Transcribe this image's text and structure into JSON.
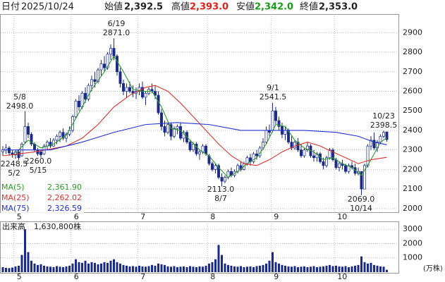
{
  "header": {
    "date_label": "日付",
    "date": "2025/10/24",
    "items": [
      {
        "label": "始値",
        "value": "2,392.5",
        "color": "#222222"
      },
      {
        "label": "高値",
        "value": "2,393.0",
        "color": "#e0201a"
      },
      {
        "label": "安値",
        "value": "2,342.0",
        "color": "#1a9a1a"
      },
      {
        "label": "終値",
        "value": "2,353.0",
        "color": "#222222"
      }
    ]
  },
  "chart_data": {
    "type": "candlestick",
    "up_color": "#ffffff",
    "down_color": "#1a2a8a",
    "wick_color": "#1a2a8a",
    "categories": [
      null,
      null,
      null,
      null,
      "5",
      null,
      null,
      null,
      null,
      null,
      null,
      null,
      null,
      null,
      null,
      null,
      null,
      null,
      null,
      null,
      null,
      null,
      "6",
      null,
      null,
      null,
      null,
      null,
      null,
      null,
      null,
      null,
      null,
      null,
      null,
      null,
      null,
      null,
      null,
      null,
      null,
      null,
      null,
      "7",
      null,
      null,
      null,
      null,
      null,
      null,
      null,
      null,
      null,
      null,
      null,
      null,
      null,
      null,
      null,
      null,
      null,
      null,
      null,
      null,
      null,
      "8",
      null,
      null,
      null,
      null,
      null,
      null,
      null,
      null,
      null,
      null,
      null,
      null,
      null,
      null,
      null,
      null,
      null,
      null,
      null,
      "9",
      null,
      null,
      null,
      null,
      null,
      null,
      null,
      null,
      null,
      null,
      null,
      null,
      null,
      null,
      null,
      null,
      null,
      null,
      null,
      "10",
      null,
      null,
      null,
      null,
      null,
      null,
      null,
      null,
      null,
      null,
      null,
      null,
      null,
      null,
      null,
      null
    ],
    "ohlc": [
      [
        2290,
        2320,
        2270,
        2300
      ],
      [
        2300,
        2330,
        2280,
        2310
      ],
      [
        2310,
        2320,
        2270,
        2285
      ],
      [
        2285,
        2300,
        2260,
        2275
      ],
      [
        2275,
        2300,
        2255,
        2290
      ],
      [
        2290,
        2300,
        2248.5,
        2260
      ],
      [
        2270,
        2340,
        2265,
        2330
      ],
      [
        2340,
        2498,
        2330,
        2420
      ],
      [
        2420,
        2440,
        2360,
        2380
      ],
      [
        2380,
        2390,
        2320,
        2330
      ],
      [
        2330,
        2340,
        2290,
        2300
      ],
      [
        2300,
        2310,
        2270,
        2280
      ],
      [
        2290,
        2300,
        2260,
        2275
      ],
      [
        2280,
        2330,
        2275,
        2320
      ],
      [
        2320,
        2350,
        2300,
        2340
      ],
      [
        2340,
        2360,
        2310,
        2320
      ],
      [
        2320,
        2360,
        2315,
        2350
      ],
      [
        2350,
        2380,
        2330,
        2370
      ],
      [
        2370,
        2400,
        2340,
        2390
      ],
      [
        2390,
        2410,
        2350,
        2360
      ],
      [
        2360,
        2390,
        2340,
        2380
      ],
      [
        2380,
        2420,
        2370,
        2400
      ],
      [
        2400,
        2480,
        2390,
        2470
      ],
      [
        2470,
        2560,
        2460,
        2550
      ],
      [
        2550,
        2580,
        2500,
        2520
      ],
      [
        2520,
        2600,
        2510,
        2590
      ],
      [
        2590,
        2620,
        2540,
        2560
      ],
      [
        2560,
        2640,
        2550,
        2630
      ],
      [
        2630,
        2680,
        2600,
        2660
      ],
      [
        2660,
        2700,
        2620,
        2650
      ],
      [
        2650,
        2720,
        2640,
        2710
      ],
      [
        2710,
        2760,
        2680,
        2740
      ],
      [
        2740,
        2780,
        2700,
        2720
      ],
      [
        2720,
        2800,
        2710,
        2790
      ],
      [
        2790,
        2840,
        2760,
        2820
      ],
      [
        2820,
        2871,
        2760,
        2780
      ],
      [
        2780,
        2790,
        2680,
        2700
      ],
      [
        2700,
        2720,
        2620,
        2640
      ],
      [
        2640,
        2660,
        2580,
        2600
      ],
      [
        2600,
        2640,
        2570,
        2620
      ],
      [
        2620,
        2650,
        2590,
        2600
      ],
      [
        2600,
        2630,
        2570,
        2590
      ],
      [
        2590,
        2620,
        2560,
        2600
      ],
      [
        2600,
        2640,
        2580,
        2620
      ],
      [
        2620,
        2650,
        2560,
        2570
      ],
      [
        2570,
        2600,
        2530,
        2590
      ],
      [
        2590,
        2620,
        2580,
        2610
      ],
      [
        2610,
        2640,
        2590,
        2600
      ],
      [
        2600,
        2630,
        2560,
        2580
      ],
      [
        2580,
        2600,
        2480,
        2490
      ],
      [
        2490,
        2510,
        2400,
        2420
      ],
      [
        2420,
        2450,
        2370,
        2390
      ],
      [
        2390,
        2440,
        2380,
        2430
      ],
      [
        2430,
        2440,
        2350,
        2370
      ],
      [
        2370,
        2420,
        2360,
        2410
      ],
      [
        2410,
        2430,
        2380,
        2420
      ],
      [
        2420,
        2440,
        2350,
        2360
      ],
      [
        2360,
        2400,
        2340,
        2390
      ],
      [
        2390,
        2400,
        2330,
        2340
      ],
      [
        2340,
        2350,
        2290,
        2300
      ],
      [
        2300,
        2340,
        2290,
        2330
      ],
      [
        2330,
        2340,
        2270,
        2280
      ],
      [
        2280,
        2300,
        2250,
        2290
      ],
      [
        2290,
        2330,
        2280,
        2320
      ],
      [
        2320,
        2330,
        2270,
        2280
      ],
      [
        2270,
        2280,
        2220,
        2230
      ],
      [
        2230,
        2240,
        2190,
        2200
      ],
      [
        2200,
        2230,
        2180,
        2220
      ],
      [
        2220,
        2230,
        2150,
        2160
      ],
      [
        2160,
        2180,
        2113,
        2140
      ],
      [
        2140,
        2170,
        2130,
        2160
      ],
      [
        2160,
        2200,
        2150,
        2190
      ],
      [
        2190,
        2210,
        2160,
        2170
      ],
      [
        2170,
        2200,
        2160,
        2190
      ],
      [
        2190,
        2230,
        2180,
        2220
      ],
      [
        2220,
        2240,
        2190,
        2200
      ],
      [
        2200,
        2240,
        2195,
        2230
      ],
      [
        2230,
        2270,
        2220,
        2260
      ],
      [
        2260,
        2280,
        2220,
        2240
      ],
      [
        2240,
        2290,
        2230,
        2280
      ],
      [
        2280,
        2300,
        2250,
        2270
      ],
      [
        2270,
        2320,
        2260,
        2310
      ],
      [
        2310,
        2360,
        2300,
        2340
      ],
      [
        2340,
        2420,
        2330,
        2400
      ],
      [
        2400,
        2430,
        2370,
        2390
      ],
      [
        2400,
        2541.5,
        2390,
        2500
      ],
      [
        2500,
        2520,
        2430,
        2450
      ],
      [
        2450,
        2470,
        2400,
        2420
      ],
      [
        2420,
        2440,
        2360,
        2380
      ],
      [
        2380,
        2420,
        2350,
        2400
      ],
      [
        2400,
        2410,
        2330,
        2340
      ],
      [
        2340,
        2370,
        2300,
        2310
      ],
      [
        2310,
        2350,
        2300,
        2340
      ],
      [
        2340,
        2360,
        2290,
        2300
      ],
      [
        2300,
        2330,
        2260,
        2270
      ],
      [
        2270,
        2310,
        2260,
        2300
      ],
      [
        2300,
        2340,
        2290,
        2320
      ],
      [
        2320,
        2330,
        2260,
        2270
      ],
      [
        2270,
        2300,
        2240,
        2260
      ],
      [
        2260,
        2290,
        2240,
        2280
      ],
      [
        2280,
        2290,
        2230,
        2240
      ],
      [
        2240,
        2260,
        2200,
        2220
      ],
      [
        2220,
        2270,
        2210,
        2260
      ],
      [
        2260,
        2310,
        2250,
        2300
      ],
      [
        2300,
        2310,
        2240,
        2250
      ],
      [
        2250,
        2260,
        2200,
        2210
      ],
      [
        2210,
        2240,
        2190,
        2230
      ],
      [
        2230,
        2250,
        2200,
        2220
      ],
      [
        2220,
        2230,
        2180,
        2190
      ],
      [
        2190,
        2230,
        2180,
        2220
      ],
      [
        2220,
        2240,
        2200,
        2210
      ],
      [
        2210,
        2230,
        2170,
        2180
      ],
      [
        2180,
        2210,
        2170,
        2190
      ],
      [
        2190,
        2190,
        2069,
        2100
      ],
      [
        2100,
        2230,
        2100,
        2220
      ],
      [
        2220,
        2330,
        2210,
        2320
      ],
      [
        2320,
        2370,
        2300,
        2350
      ],
      [
        2350,
        2390,
        2300,
        2310
      ],
      [
        2310,
        2350,
        2290,
        2340
      ],
      [
        2340,
        2380,
        2330,
        2370
      ],
      [
        2370,
        2398.5,
        2360,
        2390
      ],
      [
        2392.5,
        2393,
        2342,
        2353
      ]
    ],
    "ylim": [
      1985,
      2995
    ],
    "yticks": [
      2000,
      2100,
      2200,
      2300,
      2400,
      2500,
      2600,
      2700,
      2800,
      2900
    ],
    "grid": true,
    "ma_series": [
      {
        "name": "MA(5)",
        "legend_value": "2,361.90",
        "color": "#2a9a2a",
        "x": [
          4,
          8,
          12,
          16,
          20,
          24,
          28,
          32,
          35,
          38,
          41,
          44,
          47,
          50,
          53,
          56,
          59,
          62,
          65,
          68,
          71,
          74,
          77,
          80,
          83,
          86,
          89,
          92,
          95,
          98,
          101,
          104,
          107,
          110,
          113,
          116,
          119,
          121
        ],
        "values": [
          2285,
          2350,
          2310,
          2330,
          2375,
          2490,
          2610,
          2700,
          2780,
          2700,
          2610,
          2600,
          2600,
          2520,
          2410,
          2400,
          2350,
          2300,
          2270,
          2210,
          2160,
          2190,
          2230,
          2260,
          2330,
          2430,
          2420,
          2350,
          2310,
          2290,
          2250,
          2260,
          2230,
          2210,
          2170,
          2250,
          2340,
          2361.9
        ]
      },
      {
        "name": "MA(25)",
        "legend_value": "2,262.02",
        "color": "#e0302a",
        "x": [
          0,
          10,
          20,
          25,
          30,
          35,
          40,
          45,
          48,
          52,
          56,
          60,
          64,
          68,
          72,
          76,
          80,
          84,
          88,
          92,
          96,
          100,
          104,
          108,
          112,
          116,
          121
        ],
        "values": [
          2270,
          2290,
          2320,
          2360,
          2430,
          2520,
          2580,
          2620,
          2630,
          2600,
          2540,
          2470,
          2400,
          2330,
          2270,
          2230,
          2220,
          2250,
          2290,
          2320,
          2340,
          2320,
          2290,
          2260,
          2230,
          2250,
          2262.02
        ]
      },
      {
        "name": "MA(75)",
        "legend_value": "2,326.59",
        "color": "#2030d0",
        "x": [
          0,
          15,
          25,
          35,
          45,
          55,
          65,
          75,
          85,
          95,
          105,
          112,
          117,
          121
        ],
        "values": [
          2300,
          2300,
          2340,
          2390,
          2430,
          2440,
          2430,
          2400,
          2400,
          2400,
          2390,
          2370,
          2340,
          2326.59
        ]
      }
    ],
    "annotations": [
      [
        "5/8",
        "2498.0"
      ],
      [
        "6/19",
        "2871.0"
      ],
      [
        "9/1",
        "2541.5"
      ],
      [
        "10/23",
        "2398.5"
      ],
      [
        "2248.5",
        "5/2"
      ],
      [
        "2260.0",
        "5/15"
      ],
      [
        "2113.0",
        "8/7"
      ],
      [
        "2069.0",
        "10/14"
      ]
    ],
    "volume": {
      "title": "出来高",
      "latest": "1,630,800株",
      "unit": "(万株)",
      "color": "#1a2a8a",
      "values": [
        350,
        300,
        280,
        320,
        400,
        450,
        1200,
        3000,
        1400,
        800,
        600,
        500,
        550,
        450,
        400,
        380,
        350,
        420,
        380,
        350,
        400,
        450,
        600,
        900,
        700,
        650,
        800,
        600,
        700,
        650,
        550,
        600,
        700,
        650,
        800,
        900,
        700,
        600,
        500,
        450,
        400,
        420,
        380,
        450,
        400,
        380,
        420,
        500,
        450,
        600,
        550,
        500,
        400,
        380,
        420,
        350,
        380,
        400,
        350,
        420,
        380,
        350,
        400,
        380,
        450,
        600,
        700,
        900,
        1900,
        1200,
        600,
        500,
        450,
        400,
        380,
        420,
        350,
        380,
        400,
        350,
        420,
        450,
        500,
        600,
        800,
        1400,
        700,
        600,
        500,
        450,
        400,
        380,
        420,
        350,
        380,
        400,
        350,
        380,
        420,
        350,
        380,
        400,
        450,
        500,
        420,
        450,
        400,
        380,
        420,
        350,
        400,
        450,
        500,
        1100,
        700,
        600,
        650,
        500,
        450,
        400,
        380,
        163.08
      ],
      "ylim": [
        0,
        3550
      ],
      "yticks": [
        1000,
        2000,
        3000
      ]
    }
  }
}
